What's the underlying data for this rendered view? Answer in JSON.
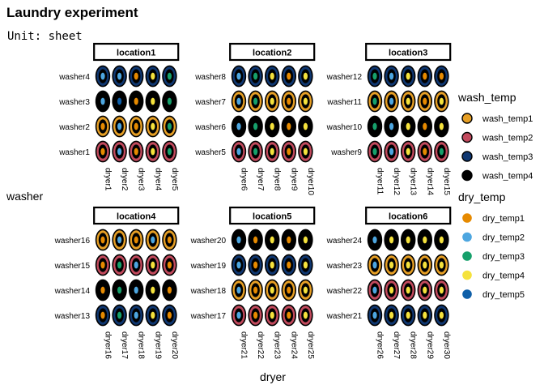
{
  "title": "Laundry experiment",
  "subtitle": "Unit: sheet",
  "x_axis_label": "dryer",
  "y_axis_label": "washer",
  "colors": {
    "wash_temp1": "#E69F25",
    "wash_temp2": "#C24A5D",
    "wash_temp3": "#0F3771",
    "wash_temp4": "#000000",
    "dry_temp1": "#E68A00",
    "dry_temp2": "#4DA6E0",
    "dry_temp3": "#16A06B",
    "dry_temp4": "#F5E23C",
    "dry_temp5": "#0F5FA8"
  },
  "legends": [
    {
      "title": "wash_temp",
      "items": [
        "wash_temp1",
        "wash_temp2",
        "wash_temp3",
        "wash_temp4"
      ],
      "style": "ring"
    },
    {
      "title": "dry_temp",
      "items": [
        "dry_temp1",
        "dry_temp2",
        "dry_temp3",
        "dry_temp4",
        "dry_temp5"
      ],
      "style": "dot"
    }
  ],
  "panels": [
    {
      "title": "location1",
      "washers": [
        "washer4",
        "washer3",
        "washer2",
        "washer1"
      ],
      "dryers": [
        "dryer1",
        "dryer2",
        "dryer3",
        "dryer4",
        "dryer5"
      ],
      "wash_temp": [
        3,
        4,
        1,
        2
      ],
      "dry_temp": [
        [
          2,
          2,
          1,
          4,
          3
        ],
        [
          2,
          5,
          1,
          4,
          3
        ],
        [
          1,
          2,
          1,
          4,
          3
        ],
        [
          1,
          2,
          1,
          4,
          3
        ]
      ]
    },
    {
      "title": "location2",
      "washers": [
        "washer8",
        "washer7",
        "washer6",
        "washer5"
      ],
      "dryers": [
        "dryer6",
        "dryer7",
        "dryer8",
        "dryer9",
        "dryer10"
      ],
      "wash_temp": [
        3,
        1,
        4,
        2
      ],
      "dry_temp": [
        [
          2,
          3,
          4,
          1,
          4
        ],
        [
          2,
          3,
          4,
          1,
          4
        ],
        [
          2,
          3,
          4,
          1,
          4
        ],
        [
          2,
          3,
          4,
          1,
          4
        ]
      ]
    },
    {
      "title": "location3",
      "washers": [
        "washer12",
        "washer11",
        "washer10",
        "washer9"
      ],
      "dryers": [
        "dryer11",
        "dryer12",
        "dryer13",
        "dryer14",
        "dryer15"
      ],
      "wash_temp": [
        3,
        1,
        4,
        2
      ],
      "dry_temp": [
        [
          3,
          2,
          4,
          1,
          1
        ],
        [
          3,
          2,
          4,
          1,
          4
        ],
        [
          3,
          2,
          4,
          1,
          4
        ],
        [
          3,
          2,
          4,
          1,
          3
        ]
      ]
    },
    {
      "title": "location4",
      "washers": [
        "washer16",
        "washer15",
        "washer14",
        "washer13"
      ],
      "dryers": [
        "dryer16",
        "dryer17",
        "dryer18",
        "dryer19",
        "dryer20"
      ],
      "wash_temp": [
        1,
        2,
        4,
        3
      ],
      "dry_temp": [
        [
          1,
          2,
          1,
          2,
          1
        ],
        [
          1,
          3,
          2,
          4,
          1
        ],
        [
          1,
          3,
          2,
          4,
          1
        ],
        [
          1,
          3,
          2,
          4,
          1
        ]
      ]
    },
    {
      "title": "location5",
      "washers": [
        "washer20",
        "washer19",
        "washer18",
        "washer17"
      ],
      "dryers": [
        "dryer21",
        "dryer22",
        "dryer23",
        "dryer24",
        "dryer25"
      ],
      "wash_temp": [
        4,
        3,
        1,
        2
      ],
      "dry_temp": [
        [
          2,
          1,
          4,
          1,
          4
        ],
        [
          2,
          1,
          4,
          1,
          4
        ],
        [
          2,
          1,
          4,
          1,
          4
        ],
        [
          2,
          1,
          4,
          1,
          4
        ]
      ]
    },
    {
      "title": "location6",
      "washers": [
        "washer24",
        "washer23",
        "washer22",
        "washer21"
      ],
      "dryers": [
        "dryer26",
        "dryer27",
        "dryer28",
        "dryer29",
        "dryer30"
      ],
      "wash_temp": [
        4,
        1,
        2,
        3
      ],
      "dry_temp": [
        [
          2,
          4,
          4,
          4,
          4
        ],
        [
          2,
          4,
          4,
          4,
          4
        ],
        [
          2,
          4,
          4,
          4,
          4
        ],
        [
          2,
          4,
          4,
          4,
          4
        ]
      ]
    }
  ]
}
